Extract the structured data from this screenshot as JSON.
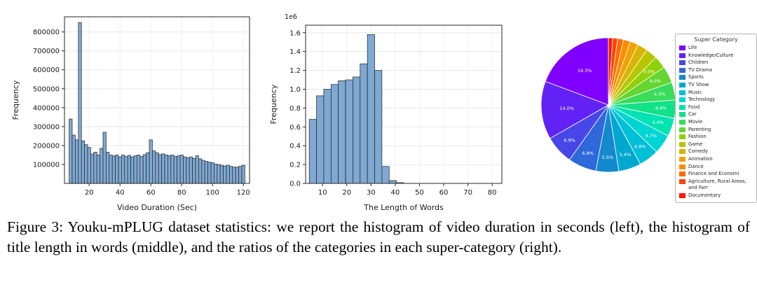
{
  "figure": {
    "caption": "Figure 3: Youku-mPLUG dataset statistics: we report the histogram of video duration in seconds (left), the histogram of title length in words (middle), and the ratios of the categories in each super-category (right)."
  },
  "chart_data": [
    {
      "type": "bar",
      "name": "video-duration-histogram",
      "xlabel": "Video Duration (Sec)",
      "ylabel": "Frequency",
      "x_start": 8,
      "bin_width": 2,
      "xlim": [
        4,
        124
      ],
      "ylim": [
        0,
        880000
      ],
      "x_ticks": [
        20,
        40,
        60,
        80,
        100,
        120
      ],
      "y_ticks": [
        100000,
        200000,
        300000,
        400000,
        500000,
        600000,
        700000,
        800000
      ],
      "y_tick_labels": [
        "100000",
        "200000",
        "300000",
        "400000",
        "500000",
        "600000",
        "700000",
        "800000"
      ],
      "values": [
        340000,
        255000,
        230000,
        850000,
        225000,
        205000,
        190000,
        155000,
        165000,
        150000,
        185000,
        270000,
        165000,
        150000,
        145000,
        150000,
        140000,
        150000,
        142000,
        148000,
        140000,
        146000,
        150000,
        142000,
        152000,
        162000,
        230000,
        172000,
        162000,
        152000,
        156000,
        150000,
        146000,
        150000,
        142000,
        146000,
        150000,
        140000,
        136000,
        140000,
        132000,
        146000,
        130000,
        122000,
        116000,
        112000,
        110000,
        102000,
        100000,
        96000,
        92000,
        96000,
        90000,
        86000,
        86000,
        90000,
        96000
      ],
      "bar_color": "#7fa8d2",
      "bar_edge": "#222222",
      "margins": {
        "l": 80,
        "r": 8,
        "t": 12,
        "b": 46
      }
    },
    {
      "type": "bar",
      "name": "title-length-histogram",
      "xlabel": "The Length of Words",
      "ylabel": "Frequency",
      "scale_label": "1e6",
      "x_start": 6,
      "bin_width": 3,
      "xlim": [
        3,
        84
      ],
      "ylim": [
        0,
        1680000
      ],
      "x_ticks": [
        10,
        20,
        30,
        40,
        50,
        60,
        70,
        80
      ],
      "y_ticks": [
        0,
        200000,
        400000,
        600000,
        800000,
        1000000,
        1200000,
        1400000,
        1600000
      ],
      "y_tick_labels": [
        "0.0",
        "0.2",
        "0.4",
        "0.6",
        "0.8",
        "1.0",
        "1.2",
        "1.4",
        "1.6"
      ],
      "values": [
        680000,
        930000,
        1000000,
        1050000,
        1090000,
        1100000,
        1130000,
        1270000,
        1580000,
        1200000,
        180000,
        30000,
        8000
      ],
      "bar_color": "#7fa8d2",
      "bar_edge": "#222222",
      "margins": {
        "l": 56,
        "r": 12,
        "t": 24,
        "b": 46
      }
    },
    {
      "type": "pie",
      "name": "super-category-pie",
      "legend_title": "Super Category",
      "categories": [
        "Life",
        "Knowledge/Culture",
        "Children",
        "TV Drama",
        "Sports",
        "TV Show",
        "Music",
        "Technology",
        "Food",
        "Car",
        "Movie",
        "Parenting",
        "Fashion",
        "Game",
        "Comedy",
        "Animation",
        "Dance",
        "Finance and Economi",
        "Agriculture, Rural Areas, and Farr",
        "Documentary"
      ],
      "values": [
        19.3,
        14.0,
        6.9,
        6.8,
        5.5,
        5.4,
        4.8,
        4.7,
        4.4,
        4.4,
        4.3,
        4.0,
        3.0,
        2.8,
        2.4,
        2.0,
        1.7,
        1.4,
        1.2,
        1.0
      ],
      "colors": [
        "#7f00ff",
        "#6322f5",
        "#4846e8",
        "#2e68da",
        "#1489cd",
        "#00a8d0",
        "#00bfd8",
        "#00d4d4",
        "#00e3b2",
        "#12e187",
        "#3bdc5c",
        "#65d532",
        "#8fd00a",
        "#b8c600",
        "#d9b400",
        "#efa200",
        "#fb8d00",
        "#ff6a00",
        "#ff4300",
        "#ff1500"
      ],
      "label_threshold": 3.0
    }
  ]
}
